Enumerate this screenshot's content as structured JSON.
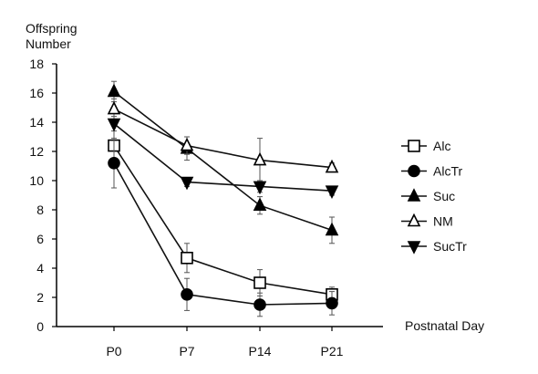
{
  "chart_data": {
    "type": "line",
    "title": "",
    "ylabel_lines": [
      "Offspring",
      "Number"
    ],
    "xlabel": "Postnatal Day",
    "categories": [
      "P0",
      "P7",
      "P14",
      "P21"
    ],
    "ylim": [
      0,
      18
    ],
    "yticks": [
      0,
      2,
      4,
      6,
      8,
      10,
      12,
      14,
      16,
      18
    ],
    "grid": false,
    "legend_position": "right",
    "series": [
      {
        "name": "Alc",
        "marker": "square-open",
        "values": [
          12.4,
          4.7,
          3.0,
          2.2
        ],
        "err": [
          1.4,
          1.0,
          0.9,
          0.5
        ]
      },
      {
        "name": "AlcTr",
        "marker": "circle-filled",
        "values": [
          11.2,
          2.2,
          1.5,
          1.6
        ],
        "err": [
          1.7,
          1.1,
          0.8,
          0.8
        ]
      },
      {
        "name": "Suc",
        "marker": "triangle-up-filled",
        "values": [
          16.1,
          12.2,
          8.3,
          6.6
        ],
        "err": [
          0.7,
          0.8,
          0.6,
          0.9
        ]
      },
      {
        "name": "NM",
        "marker": "triangle-up-open",
        "values": [
          14.9,
          12.4,
          11.4,
          10.9
        ],
        "err": [
          0.7,
          0.6,
          1.5,
          0.3
        ]
      },
      {
        "name": "SucTr",
        "marker": "triangle-down-filled",
        "values": [
          13.9,
          9.9,
          9.6,
          9.3
        ],
        "err": [
          0.5,
          0.3,
          0.4,
          0.3
        ]
      }
    ]
  }
}
